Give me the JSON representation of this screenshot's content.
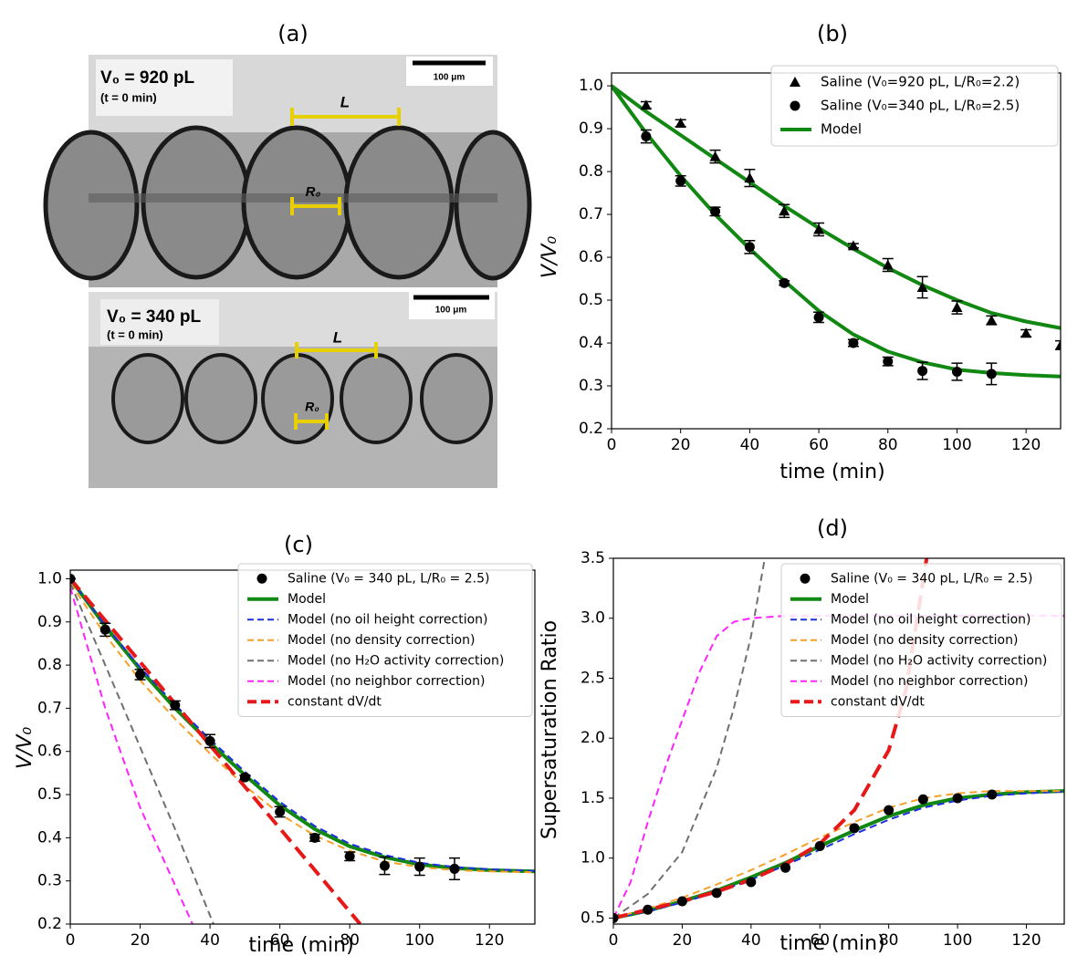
{
  "panel_a": {
    "title": "(a)",
    "images": [
      {
        "volume": "V₀ = 920 pL",
        "time": "(t = 0 min)",
        "scale_bar": "100 μm",
        "spacing": "L",
        "radius": "R₀"
      },
      {
        "volume": "V₀ = 340 pL",
        "time": "(t = 0 min)",
        "scale_bar": "100 μm",
        "spacing": "L",
        "radius": "R₀"
      }
    ]
  },
  "chart_data": [
    {
      "type": "line",
      "title": "(b)",
      "xlabel": "time (min)",
      "ylabel": "V/V₀",
      "xlim": [
        0,
        130
      ],
      "ylim": [
        0.2,
        1.03
      ],
      "xticks": [
        0,
        20,
        40,
        60,
        80,
        100,
        120
      ],
      "yticks": [
        0.2,
        0.3,
        0.4,
        0.5,
        0.6,
        0.7,
        0.8,
        0.9,
        {
          "value": 1,
          "label": "1.0"
        }
      ],
      "legend": "upper right",
      "series": [
        {
          "name": "Saline (V₀=920 pL, L/R₀=2.2)",
          "color": "#000000",
          "marker": "triangle",
          "x": [
            10,
            20,
            30,
            40,
            50,
            60,
            70,
            80,
            90,
            100,
            110,
            120,
            130
          ],
          "values": [
            0.955,
            0.913,
            0.835,
            0.785,
            0.708,
            0.665,
            0.627,
            0.582,
            0.53,
            0.483,
            0.453,
            0.423,
            0.395
          ],
          "errors": [
            0.008,
            0.008,
            0.015,
            0.02,
            0.015,
            0.015,
            0.005,
            0.015,
            0.025,
            0.015,
            0.01,
            0.008,
            0.01
          ]
        },
        {
          "name": "Saline (V₀=340 pL, L/R₀=2.5)",
          "color": "#000000",
          "marker": "circle",
          "x": [
            10,
            20,
            30,
            40,
            50,
            60,
            70,
            80,
            90,
            100,
            110
          ],
          "values": [
            0.882,
            0.778,
            0.707,
            0.624,
            0.54,
            0.46,
            0.4,
            0.357,
            0.335,
            0.333,
            0.328
          ],
          "errors": [
            0.015,
            0.012,
            0.01,
            0.015,
            0.005,
            0.012,
            0.008,
            0.01,
            0.02,
            0.02,
            0.025
          ]
        },
        {
          "name": "Model",
          "color": "#118811",
          "linestyle": "solid",
          "linewidth": 4,
          "x": [
            0,
            10,
            20,
            30,
            40,
            50,
            60,
            70,
            80,
            90,
            100,
            110,
            120,
            130,
            null,
            0,
            10,
            20,
            30,
            40,
            50,
            60,
            70,
            80,
            90,
            100,
            110,
            120,
            130
          ],
          "values": [
            1.0,
            0.94,
            0.885,
            0.83,
            0.775,
            0.72,
            0.668,
            0.62,
            0.575,
            0.535,
            0.5,
            0.47,
            0.45,
            0.435,
            null,
            1.0,
            0.89,
            0.79,
            0.7,
            0.62,
            0.545,
            0.475,
            0.42,
            0.38,
            0.355,
            0.338,
            0.33,
            0.325,
            0.322
          ]
        }
      ]
    },
    {
      "type": "line",
      "title": "(c)",
      "xlabel": "time (min)",
      "ylabel": "V/V₀",
      "xlim": [
        0,
        133
      ],
      "ylim": [
        0.2,
        1.02
      ],
      "xticks": [
        0,
        20,
        40,
        60,
        80,
        100,
        120
      ],
      "yticks": [
        0.2,
        0.3,
        0.4,
        0.5,
        0.6,
        0.7,
        0.8,
        0.9,
        {
          "value": 1,
          "label": "1.0"
        }
      ],
      "legend": "upper right",
      "series": [
        {
          "name": "Saline (V₀ = 340 pL, L/R₀ = 2.5)",
          "color": "#000000",
          "marker": "circle",
          "x": [
            0,
            10,
            20,
            30,
            40,
            50,
            60,
            70,
            80,
            90,
            100,
            110
          ],
          "values": [
            1.0,
            0.882,
            0.778,
            0.707,
            0.624,
            0.54,
            0.46,
            0.4,
            0.357,
            0.335,
            0.333,
            0.328
          ],
          "errors": [
            0,
            0.015,
            0.012,
            0.01,
            0.015,
            0.005,
            0.012,
            0.008,
            0.01,
            0.02,
            0.02,
            0.025
          ]
        },
        {
          "name": "Model",
          "color": "#118811",
          "linestyle": "solid",
          "linewidth": 4,
          "x": [
            0,
            10,
            20,
            30,
            40,
            50,
            60,
            70,
            80,
            90,
            100,
            110,
            120,
            133
          ],
          "values": [
            1.0,
            0.89,
            0.79,
            0.7,
            0.62,
            0.545,
            0.475,
            0.42,
            0.38,
            0.355,
            0.338,
            0.33,
            0.325,
            0.322
          ]
        },
        {
          "name": "Model (no oil height correction)",
          "color": "#1f2fe0",
          "linestyle": "dashed",
          "linewidth": 2,
          "x": [
            0,
            10,
            20,
            30,
            40,
            50,
            60,
            70,
            80,
            90,
            100,
            110,
            120,
            133
          ],
          "values": [
            1.0,
            0.892,
            0.795,
            0.708,
            0.628,
            0.553,
            0.483,
            0.427,
            0.386,
            0.36,
            0.342,
            0.332,
            0.327,
            0.323
          ]
        },
        {
          "name": "Model (no density correction)",
          "color": "#f5a02a",
          "linestyle": "dashed",
          "linewidth": 2,
          "x": [
            0,
            10,
            20,
            30,
            40,
            50,
            60,
            70,
            80,
            90,
            100,
            110,
            120,
            133
          ],
          "values": [
            0.99,
            0.87,
            0.765,
            0.675,
            0.595,
            0.52,
            0.455,
            0.405,
            0.37,
            0.345,
            0.332,
            0.325,
            0.322,
            0.32
          ]
        },
        {
          "name": "Model (no H₂O activity correction)",
          "color": "#707070",
          "linestyle": "dashed",
          "linewidth": 2,
          "x": [
            0,
            10,
            20,
            30,
            41
          ],
          "values": [
            0.99,
            0.8,
            0.61,
            0.42,
            0.2
          ]
        },
        {
          "name": "Model (no neighbor correction)",
          "color": "#ff22ff",
          "linestyle": "dashed",
          "linewidth": 2,
          "x": [
            0,
            10,
            20,
            30,
            35
          ],
          "values": [
            0.98,
            0.7,
            0.47,
            0.29,
            0.2
          ]
        },
        {
          "name": "constant dV/dt",
          "color": "#e81818",
          "linestyle": "dashed",
          "linewidth": 4,
          "x": [
            0,
            83
          ],
          "values": [
            1.0,
            0.2
          ]
        }
      ]
    },
    {
      "type": "line",
      "title": "(d)",
      "xlabel": "time (min)",
      "ylabel": "Supersaturation Ratio",
      "xlim": [
        0,
        131
      ],
      "ylim": [
        0.45,
        3.5
      ],
      "xticks": [
        0,
        20,
        40,
        60,
        80,
        100,
        120
      ],
      "yticks": [
        0.5,
        {
          "value": 1,
          "label": "1.0"
        },
        1.5,
        {
          "value": 2,
          "label": "2.0"
        },
        2.5,
        {
          "value": 3,
          "label": "3.0"
        },
        3.5
      ],
      "legend": "upper right",
      "series": [
        {
          "name": "Saline (V₀ = 340 pL, L/R₀ = 2.5)",
          "color": "#000000",
          "marker": "circle",
          "x": [
            0,
            10,
            20,
            30,
            40,
            50,
            60,
            70,
            80,
            90,
            100,
            110
          ],
          "values": [
            0.5,
            0.57,
            0.64,
            0.71,
            0.8,
            0.92,
            1.1,
            1.25,
            1.4,
            1.49,
            1.5,
            1.53
          ]
        },
        {
          "name": "Model",
          "color": "#118811",
          "linestyle": "solid",
          "linewidth": 4,
          "x": [
            0,
            10,
            20,
            30,
            40,
            50,
            60,
            70,
            80,
            90,
            100,
            110,
            120,
            131
          ],
          "values": [
            0.5,
            0.56,
            0.64,
            0.73,
            0.84,
            0.96,
            1.1,
            1.23,
            1.35,
            1.44,
            1.5,
            1.53,
            1.55,
            1.56
          ]
        },
        {
          "name": "Model (no oil height correction)",
          "color": "#1f2fe0",
          "linestyle": "dashed",
          "linewidth": 2,
          "x": [
            0,
            10,
            20,
            30,
            40,
            50,
            60,
            70,
            80,
            90,
            100,
            110,
            120,
            131
          ],
          "values": [
            0.5,
            0.555,
            0.63,
            0.715,
            0.82,
            0.94,
            1.07,
            1.2,
            1.32,
            1.42,
            1.48,
            1.52,
            1.54,
            1.555
          ]
        },
        {
          "name": "Model (no density correction)",
          "color": "#f5a02a",
          "linestyle": "dashed",
          "linewidth": 2,
          "x": [
            0,
            10,
            20,
            30,
            40,
            50,
            60,
            70,
            80,
            90,
            100,
            110,
            120,
            131
          ],
          "values": [
            0.5,
            0.58,
            0.67,
            0.78,
            0.9,
            1.03,
            1.17,
            1.3,
            1.42,
            1.5,
            1.54,
            1.56,
            1.56,
            1.56
          ]
        },
        {
          "name": "Model (no H₂O activity correction)",
          "color": "#707070",
          "linestyle": "dashed",
          "linewidth": 2,
          "x": [
            0,
            10,
            20,
            30,
            35,
            40,
            44
          ],
          "values": [
            0.5,
            0.7,
            1.05,
            1.75,
            2.25,
            2.85,
            3.5
          ]
        },
        {
          "name": "Model (no neighbor correction)",
          "color": "#ff22ff",
          "linestyle": "dashed",
          "linewidth": 2,
          "x": [
            0,
            5,
            10,
            15,
            20,
            25,
            30,
            35,
            40,
            50,
            60,
            131
          ],
          "values": [
            0.5,
            0.8,
            1.3,
            1.75,
            2.15,
            2.55,
            2.85,
            2.97,
            3.0,
            3.02,
            3.02,
            3.02
          ]
        },
        {
          "name": "constant dV/dt",
          "color": "#e81818",
          "linestyle": "dashed",
          "linewidth": 4,
          "x": [
            0,
            10,
            20,
            30,
            40,
            50,
            60,
            70,
            80,
            85,
            91
          ],
          "values": [
            0.5,
            0.57,
            0.64,
            0.72,
            0.82,
            0.95,
            1.12,
            1.4,
            1.9,
            2.4,
            3.5
          ]
        }
      ]
    }
  ]
}
